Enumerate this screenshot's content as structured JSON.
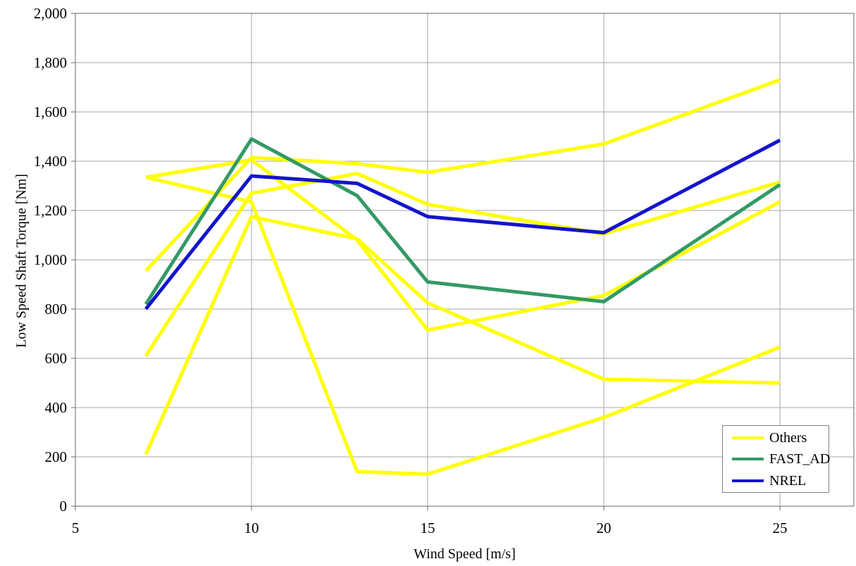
{
  "chart": {
    "xlabel": "Wind Speed [m/s]",
    "ylabel": "Low Speed Shaft Torque [Nm]"
  },
  "colors": {
    "others": "#FFFF00",
    "fast_ad": "#339966",
    "nrel": "#1414CC",
    "grid": "#A6A6A6",
    "border": "#808080",
    "text": "#000000",
    "background": "#FFFFFF"
  },
  "legend": {
    "others_label": "Others",
    "fast_ad_label": "FAST_AD",
    "nrel_label": "NREL"
  },
  "chart_data": {
    "type": "line",
    "x": [
      7,
      10,
      13,
      15,
      20,
      25
    ],
    "series": [
      {
        "name": "others-1",
        "legend_label": "Others",
        "color_key": "others",
        "values": [
          1335,
          1235,
          140,
          130,
          360,
          645
        ]
      },
      {
        "name": "others-2",
        "legend_label": "Others",
        "color_key": "others",
        "values": [
          955,
          1415,
          1390,
          1355,
          1470,
          1730
        ]
      },
      {
        "name": "others-3",
        "legend_label": "Others",
        "color_key": "others",
        "values": [
          610,
          1270,
          1350,
          1225,
          1105,
          1315
        ]
      },
      {
        "name": "others-4",
        "legend_label": "Others",
        "color_key": "others",
        "values": [
          210,
          1175,
          1085,
          825,
          515,
          500
        ]
      },
      {
        "name": "others-5",
        "legend_label": "Others",
        "color_key": "others",
        "values": [
          1335,
          1405,
          1080,
          715,
          855,
          1235
        ]
      },
      {
        "name": "FAST_AD",
        "legend_label": "FAST_AD",
        "color_key": "fast_ad",
        "values": [
          820,
          1490,
          1260,
          910,
          830,
          1305
        ]
      },
      {
        "name": "NREL",
        "legend_label": "NREL",
        "color_key": "nrel",
        "values": [
          800,
          1340,
          1310,
          1175,
          1110,
          1485
        ]
      }
    ],
    "title": "",
    "xlabel": "Wind Speed [m/s]",
    "ylabel": "Low Speed Shaft Torque [Nm]",
    "xlim": [
      5,
      27.1
    ],
    "ylim": [
      0,
      2000
    ],
    "x_ticks": [
      5,
      10,
      15,
      20,
      25
    ],
    "y_ticks": [
      0,
      200,
      400,
      600,
      800,
      1000,
      1200,
      1400,
      1600,
      1800,
      2000
    ],
    "grid": true,
    "legend_position": "bottom-right",
    "legend_entries": [
      {
        "label": "Others",
        "color_key": "others"
      },
      {
        "label": "FAST_AD",
        "color_key": "fast_ad"
      },
      {
        "label": "NREL",
        "color_key": "nrel"
      }
    ]
  }
}
